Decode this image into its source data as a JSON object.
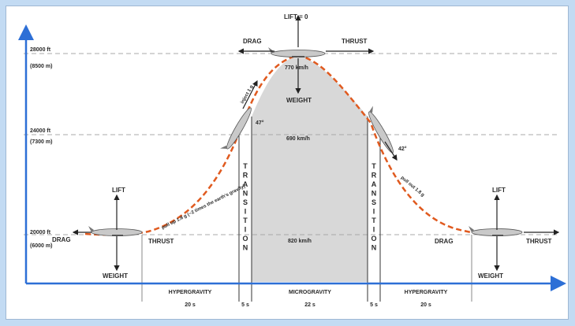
{
  "colors": {
    "axis": "#2d6fd6",
    "trajectory": "#e05a1f",
    "microgravity_fill": "#d8d8d8",
    "guide_line": "#a8a8a8",
    "frame_bg": "#c3dbf3"
  },
  "altitudes": {
    "top_ft": "28000 ft",
    "top_m": "(8500 m)",
    "mid_ft": "24000 ft",
    "mid_m": "(7300 m)",
    "low_ft": "20000 ft",
    "low_m": "(6000 m)"
  },
  "forces": {
    "lift_top": "LIFT = 0",
    "drag": "DRAG",
    "thrust": "THRUST",
    "weight": "WEIGHT",
    "lift": "LIFT"
  },
  "speeds": {
    "top": "770 km/h",
    "mid": "690 km/h",
    "low": "820 km/h"
  },
  "angles": {
    "pull_up": "47°",
    "pull_out": "42°"
  },
  "annotations": {
    "entry_maneuver": "pull up 1.8 g (~2 times the earth's gravity)",
    "upward_path": "inject 1 g",
    "exit_maneuver": "pull out 1.8 g"
  },
  "transition_label": "TRANSITION",
  "phases": [
    {
      "label": "HYPERGRAVITY",
      "duration": "20 s"
    },
    {
      "label": "",
      "duration": "5 s"
    },
    {
      "label": "MICROGRAVITY",
      "duration": "22 s"
    },
    {
      "label": "",
      "duration": "5 s"
    },
    {
      "label": "HYPERGRAVITY",
      "duration": "20 s"
    }
  ]
}
